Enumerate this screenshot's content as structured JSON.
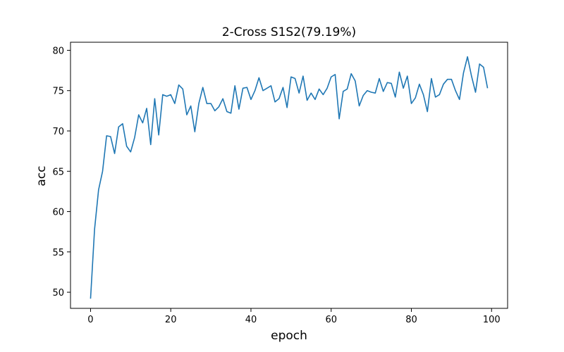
{
  "chart_data": {
    "type": "line",
    "title": "2-Cross S1S2(79.19%)",
    "xlabel": "epoch",
    "ylabel": "acc",
    "xlim": [
      -5,
      104
    ],
    "ylim": [
      48,
      81
    ],
    "xticks": [
      0,
      20,
      40,
      60,
      80,
      100
    ],
    "yticks": [
      50,
      55,
      60,
      65,
      70,
      75,
      80
    ],
    "grid": false,
    "line_color": "#1f77b4",
    "series": [
      {
        "x": [
          0,
          1,
          2,
          3,
          4,
          5,
          6,
          7,
          8,
          9,
          10,
          11,
          12,
          13,
          14,
          15,
          16,
          17,
          18,
          19,
          20,
          21,
          22,
          23,
          24,
          25,
          26,
          27,
          28,
          29,
          30,
          31,
          32,
          33,
          34,
          35,
          36,
          37,
          38,
          39,
          40,
          41,
          42,
          43,
          44,
          45,
          46,
          47,
          48,
          49,
          50,
          51,
          52,
          53,
          54,
          55,
          56,
          57,
          58,
          59,
          60,
          61,
          62,
          63,
          64,
          65,
          66,
          67,
          68,
          69,
          70,
          71,
          72,
          73,
          74,
          75,
          76,
          77,
          78,
          79,
          80,
          81,
          82,
          83,
          84,
          85,
          86,
          87,
          88,
          89,
          90,
          91,
          92,
          93,
          94,
          95,
          96,
          97,
          98,
          99
        ],
        "values": [
          49.2,
          57.8,
          62.7,
          65.0,
          69.4,
          69.3,
          67.2,
          70.5,
          70.9,
          68.1,
          67.4,
          69.2,
          72.0,
          71.0,
          72.8,
          68.3,
          74.0,
          69.5,
          74.5,
          74.3,
          74.5,
          73.4,
          75.7,
          75.2,
          72.0,
          73.1,
          69.9,
          73.4,
          75.4,
          73.4,
          73.4,
          72.5,
          73.0,
          74.0,
          72.4,
          72.2,
          75.6,
          72.7,
          75.3,
          75.4,
          73.9,
          75.0,
          76.6,
          75.0,
          75.3,
          75.6,
          73.6,
          74.0,
          75.4,
          72.9,
          76.7,
          76.5,
          74.7,
          76.8,
          73.8,
          74.7,
          73.9,
          75.2,
          74.5,
          75.3,
          76.7,
          77.0,
          71.5,
          74.9,
          75.2,
          77.1,
          76.2,
          73.1,
          74.4,
          75.0,
          74.8,
          74.7,
          76.5,
          74.9,
          76.0,
          75.9,
          74.2,
          77.3,
          75.3,
          76.8,
          73.4,
          74.1,
          75.8,
          74.5,
          72.4,
          76.5,
          74.2,
          74.5,
          75.8,
          76.4,
          76.4,
          75.0,
          73.9,
          77.2,
          79.2,
          76.8,
          74.8,
          78.3,
          77.9,
          75.3
        ]
      }
    ]
  }
}
